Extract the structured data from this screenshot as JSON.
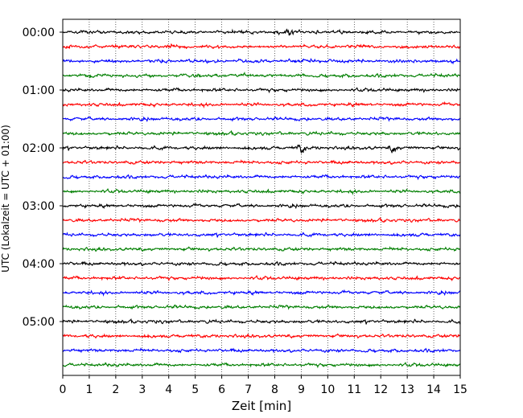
{
  "chart_data": {
    "type": "line",
    "title": "",
    "xlabel": "Zeit  [min]",
    "ylabel": "UTC (Lokalzeit = UTC + 01:00)",
    "xlim": [
      0,
      15
    ],
    "x_ticks": [
      "0",
      "1",
      "2",
      "3",
      "4",
      "5",
      "6",
      "7",
      "8",
      "9",
      "10",
      "11",
      "12",
      "13",
      "14",
      "15"
    ],
    "y_ticks": [
      "00:00",
      "01:00",
      "02:00",
      "03:00",
      "04:00",
      "05:00"
    ],
    "trace_interval_min": 15,
    "trace_count": 24,
    "trace_color_cycle": [
      "#000000",
      "#ff0000",
      "#0000ff",
      "#007f00"
    ],
    "grid": {
      "x": "dotted",
      "y": false
    },
    "noted_events": [
      {
        "trace_start": "00:00",
        "x_min": 8.5
      },
      {
        "trace_start": "02:00",
        "x_min": 9.0
      },
      {
        "trace_start": "02:00",
        "x_min": 12.5
      }
    ]
  }
}
